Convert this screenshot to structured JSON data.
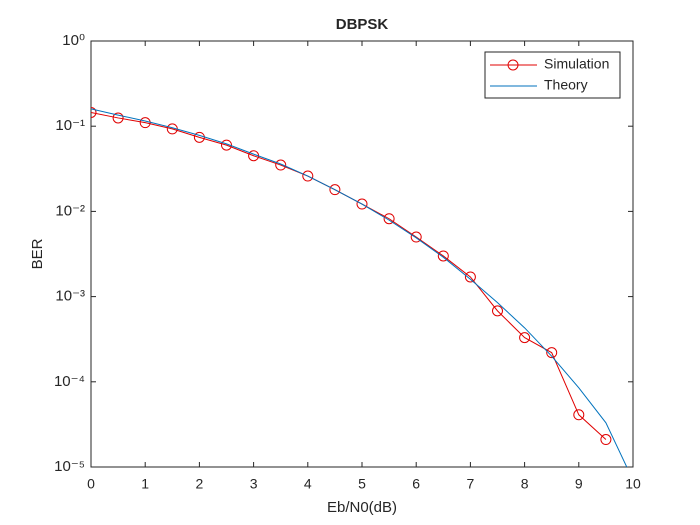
{
  "chart_data": {
    "type": "line",
    "title": "DBPSK",
    "xlabel": "Eb/N0(dB)",
    "ylabel": "BER",
    "log_y": true,
    "legend": "upper right",
    "xlim": [
      0,
      10
    ],
    "xticks": [
      0,
      1,
      2,
      3,
      4,
      5,
      6,
      7,
      8,
      9,
      10
    ],
    "ylim": [
      1e-05,
      1
    ],
    "yticks": [
      {
        "value": 1e-05,
        "label": "10⁻⁵"
      },
      {
        "value": 0.0001,
        "label": "10⁻⁴"
      },
      {
        "value": 0.001,
        "label": "10⁻³"
      },
      {
        "value": 0.01,
        "label": "10⁻²"
      },
      {
        "value": 0.1,
        "label": "10⁻¹"
      },
      {
        "value": 1,
        "label": "10⁰"
      }
    ],
    "series": [
      {
        "name": "Simulation",
        "color": "#e00000",
        "marker": "circle",
        "x": [
          0,
          0.5,
          1,
          1.5,
          2,
          2.5,
          3,
          3.5,
          4,
          4.5,
          5,
          5.5,
          6,
          6.5,
          7,
          7.5,
          8,
          8.5,
          9,
          9.5
        ],
        "values": [
          0.145,
          0.125,
          0.11,
          0.093,
          0.074,
          0.06,
          0.045,
          0.035,
          0.026,
          0.018,
          0.0122,
          0.0082,
          0.005,
          0.003,
          0.0017,
          0.00068,
          0.00033,
          0.00022,
          4.1e-05,
          2.1e-05
        ]
      },
      {
        "name": "Theory",
        "color": "#0072bd",
        "marker": "none",
        "x": [
          0,
          0.5,
          1,
          1.5,
          2,
          2.5,
          3,
          3.5,
          4,
          4.5,
          5,
          5.5,
          6,
          6.5,
          7,
          7.5,
          8,
          8.5,
          9,
          9.5,
          10
        ],
        "values": [
          0.16,
          0.135,
          0.115,
          0.096,
          0.078,
          0.062,
          0.047,
          0.036,
          0.026,
          0.018,
          0.0122,
          0.0079,
          0.0049,
          0.0029,
          0.0016,
          0.00085,
          0.00043,
          0.0002,
          8.5e-05,
          3.3e-05,
          7e-06
        ]
      }
    ]
  }
}
